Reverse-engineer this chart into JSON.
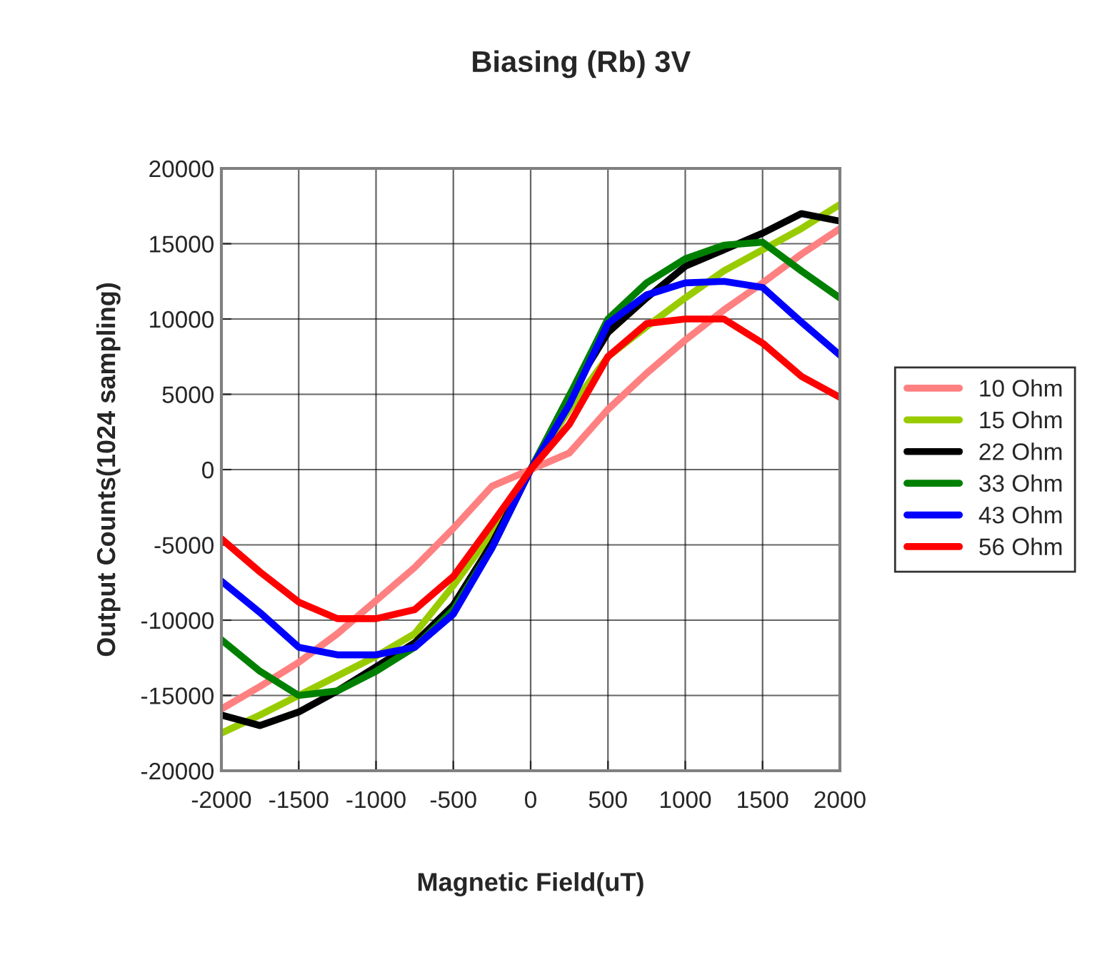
{
  "chart_data": {
    "type": "line",
    "title": "Biasing (Rb) 3V",
    "xlabel": "Magnetic Field(uT)",
    "ylabel": "Output Counts(1024 sampling)",
    "x": [
      -2000,
      -1750,
      -1500,
      -1250,
      -1000,
      -750,
      -500,
      -250,
      0,
      250,
      500,
      750,
      1000,
      1250,
      1500,
      1750,
      2000
    ],
    "series": [
      {
        "name": "10 Ohm",
        "color": "#ff8080",
        "values": [
          -15900,
          -14400,
          -12800,
          -10900,
          -8700,
          -6500,
          -3900,
          -1100,
          0,
          1100,
          4000,
          6400,
          8600,
          10600,
          12400,
          14300,
          16000
        ]
      },
      {
        "name": "15 Ohm",
        "color": "#99cc00",
        "values": [
          -17500,
          -16300,
          -15000,
          -13700,
          -12400,
          -10900,
          -7700,
          -4200,
          0,
          4000,
          7500,
          9500,
          11400,
          13200,
          14600,
          16000,
          17600
        ]
      },
      {
        "name": "22 Ohm",
        "color": "#000000",
        "values": [
          -16300,
          -17000,
          -16100,
          -14700,
          -13100,
          -11500,
          -9000,
          -4900,
          0,
          4900,
          9100,
          11400,
          13500,
          14600,
          15700,
          17000,
          16500
        ]
      },
      {
        "name": "33 Ohm",
        "color": "#008000",
        "values": [
          -11300,
          -13400,
          -15000,
          -14700,
          -13400,
          -11800,
          -9300,
          -5200,
          0,
          4900,
          10000,
          12400,
          14000,
          14900,
          15100,
          13200,
          11400
        ]
      },
      {
        "name": "43 Ohm",
        "color": "#0000ff",
        "values": [
          -7400,
          -9500,
          -11800,
          -12300,
          -12300,
          -11800,
          -9600,
          -5200,
          0,
          4300,
          9700,
          11600,
          12400,
          12500,
          12100,
          9800,
          7600
        ]
      },
      {
        "name": "56 Ohm",
        "color": "#ff0000",
        "values": [
          -4600,
          -6800,
          -8800,
          -9900,
          -9900,
          -9300,
          -7100,
          -3600,
          0,
          3000,
          7500,
          9700,
          10000,
          10000,
          8400,
          6200,
          4800
        ]
      }
    ],
    "xlim": [
      -2000,
      2000
    ],
    "ylim": [
      -20000,
      20000
    ],
    "xticks": [
      -2000,
      -1500,
      -1000,
      -500,
      0,
      500,
      1000,
      1500,
      2000
    ],
    "yticks": [
      -20000,
      -15000,
      -10000,
      -5000,
      0,
      5000,
      10000,
      15000,
      20000
    ],
    "grid": true,
    "legend": "right",
    "marker": "none",
    "line_style": "solid"
  }
}
